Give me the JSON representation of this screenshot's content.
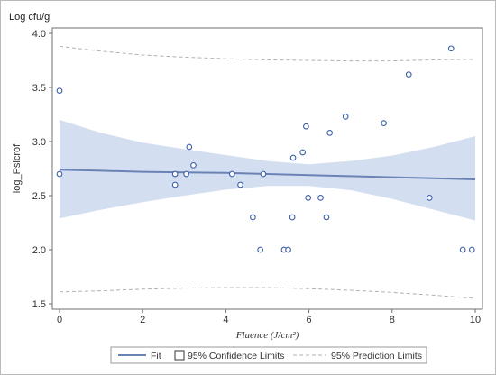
{
  "chart_data": {
    "type": "scatter",
    "unit_label": "Log cfu/g",
    "ylabel": "log_Psicrof",
    "xlabel": "Fluence (J/cm²)",
    "xlim": [
      0,
      10
    ],
    "ylim": [
      1.45,
      4.05
    ],
    "x_ticks": [
      0,
      2,
      4,
      6,
      8,
      10
    ],
    "y_ticks": [
      1.5,
      2.0,
      2.5,
      3.0,
      3.5,
      4.0
    ],
    "y_tick_labels": [
      "1.5",
      "2.0",
      "2.5",
      "3.0",
      "3.5",
      "4.0"
    ],
    "grid": false,
    "colors": {
      "points": "#3a5fa8",
      "fit": "#6b82b5",
      "confidence_band": "#d3dff1",
      "prediction_limits": "#b0b0b0"
    },
    "points": [
      {
        "x": 0.0,
        "y": 3.47
      },
      {
        "x": 0.0,
        "y": 2.7
      },
      {
        "x": 2.78,
        "y": 2.7
      },
      {
        "x": 2.78,
        "y": 2.6
      },
      {
        "x": 3.05,
        "y": 2.7
      },
      {
        "x": 3.12,
        "y": 2.95
      },
      {
        "x": 3.22,
        "y": 2.78
      },
      {
        "x": 4.15,
        "y": 2.7
      },
      {
        "x": 4.35,
        "y": 2.6
      },
      {
        "x": 4.65,
        "y": 2.3
      },
      {
        "x": 4.83,
        "y": 2.0
      },
      {
        "x": 4.9,
        "y": 2.7
      },
      {
        "x": 5.4,
        "y": 2.0
      },
      {
        "x": 5.5,
        "y": 2.0
      },
      {
        "x": 5.6,
        "y": 2.3
      },
      {
        "x": 5.62,
        "y": 2.85
      },
      {
        "x": 5.85,
        "y": 2.9
      },
      {
        "x": 5.93,
        "y": 3.14
      },
      {
        "x": 5.98,
        "y": 2.48
      },
      {
        "x": 6.28,
        "y": 2.48
      },
      {
        "x": 6.42,
        "y": 2.3
      },
      {
        "x": 6.5,
        "y": 3.08
      },
      {
        "x": 6.88,
        "y": 3.23
      },
      {
        "x": 7.8,
        "y": 3.17
      },
      {
        "x": 8.4,
        "y": 3.62
      },
      {
        "x": 8.9,
        "y": 2.48
      },
      {
        "x": 9.42,
        "y": 3.86
      },
      {
        "x": 9.7,
        "y": 2.0
      },
      {
        "x": 9.92,
        "y": 2.0
      }
    ],
    "fit": {
      "x": [
        0,
        1,
        2,
        3,
        4,
        5,
        6,
        7,
        8,
        9,
        10
      ],
      "y": [
        2.74,
        2.73,
        2.72,
        2.715,
        2.71,
        2.7,
        2.69,
        2.68,
        2.67,
        2.66,
        2.65
      ]
    },
    "confidence_limits": {
      "x": [
        0,
        1,
        2,
        3,
        4,
        5,
        6,
        7,
        8,
        9,
        10
      ],
      "lower": [
        2.29,
        2.37,
        2.44,
        2.5,
        2.555,
        2.59,
        2.59,
        2.55,
        2.47,
        2.37,
        2.27
      ],
      "upper": [
        3.2,
        3.08,
        2.99,
        2.93,
        2.875,
        2.82,
        2.79,
        2.82,
        2.87,
        2.95,
        3.05
      ]
    },
    "prediction_limits": {
      "x": [
        0,
        1,
        2,
        3,
        4,
        5,
        6,
        7,
        8,
        9,
        10
      ],
      "lower": [
        1.61,
        1.62,
        1.635,
        1.645,
        1.65,
        1.65,
        1.64,
        1.625,
        1.605,
        1.58,
        1.55
      ],
      "upper": [
        3.88,
        3.835,
        3.8,
        3.78,
        3.765,
        3.755,
        3.75,
        3.745,
        3.745,
        3.755,
        3.76
      ]
    },
    "legend": {
      "position": "bottom",
      "items": [
        {
          "label": "Fit",
          "kind": "line"
        },
        {
          "label": "95% Confidence Limits",
          "kind": "box"
        },
        {
          "label": "95% Prediction Limits",
          "kind": "dashed"
        }
      ]
    }
  }
}
